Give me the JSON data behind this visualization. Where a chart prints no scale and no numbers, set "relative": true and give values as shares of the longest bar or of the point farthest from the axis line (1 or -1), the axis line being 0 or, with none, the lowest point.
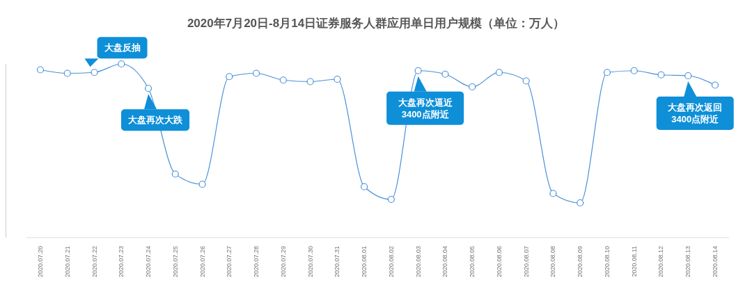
{
  "chart_data": {
    "type": "line",
    "title": "2020年7月20日-8月14日证券服务人群应用单日用户规模（单位：万人）",
    "categories": [
      "2020.07.20",
      "2020.07.21",
      "2020.07.22",
      "2020.07.23",
      "2020.07.24",
      "2020.07.25",
      "2020.07.26",
      "2020.07.27",
      "2020.07.28",
      "2020.07.29",
      "2020.07.30",
      "2020.07.31",
      "2020.08.01",
      "2020.08.02",
      "2020.08.03",
      "2020.08.04",
      "2020.08.05",
      "2020.08.06",
      "2020.08.07",
      "2020.08.08",
      "2020.08.09",
      "2020.08.10",
      "2020.08.11",
      "2020.08.12",
      "2020.08.13",
      "2020.08.14"
    ],
    "series": [
      {
        "color": "#4a90d9",
        "values": [
          0.966,
          0.946,
          0.951,
          1,
          0.859,
          0.366,
          0.307,
          0.927,
          0.946,
          0.907,
          0.898,
          0.912,
          0.293,
          0.22,
          0.961,
          0.941,
          0.868,
          0.951,
          0.902,
          0.254,
          0.2,
          0.951,
          0.961,
          0.937,
          0.932,
          0.878
        ]
      }
    ],
    "relative": true,
    "marker": "circle",
    "line_style": "solid",
    "annotations": [
      {
        "text": "大盘反抽",
        "x": "2020.07.22",
        "y": 0.951
      },
      {
        "text": "大盘再次大跌",
        "x": "2020.07.24",
        "y": 0.859
      },
      {
        "text": "大盘再次逼近\n3400点附近",
        "x": "2020.08.03",
        "y": 0.961
      },
      {
        "text": "大盘再次返回\n3400点附近",
        "x": "2020.08.13",
        "y": 0.932
      }
    ]
  }
}
